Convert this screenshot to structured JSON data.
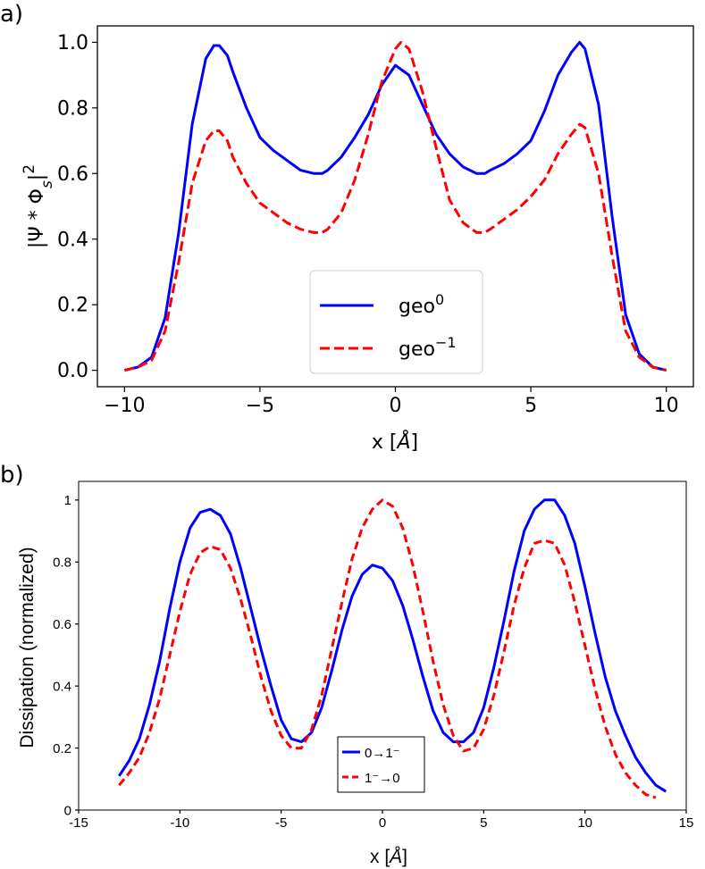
{
  "chart_data": [
    {
      "panel_label": "a)",
      "type": "line",
      "xlabel_main": "x [",
      "xlabel_unit": "Å",
      "xlabel_close": "]",
      "ylabel": {
        "lead": "|Ψ * Φ",
        "sub": "s",
        "trail": "|",
        "sup": "2"
      },
      "xlim": [
        -11.0,
        11.0
      ],
      "ylim": [
        -0.05,
        1.05
      ],
      "xticks": [
        -10,
        -5,
        0,
        5,
        10
      ],
      "xtick_labels": [
        "−10",
        "−5",
        "0",
        "5",
        "10"
      ],
      "yticks": [
        0.0,
        0.2,
        0.4,
        0.6,
        0.8,
        1.0
      ],
      "ytick_labels": [
        "0.0",
        "0.2",
        "0.4",
        "0.6",
        "0.8",
        "1.0"
      ],
      "legend": "lower-center",
      "series": [
        {
          "name": "geo",
          "sup": "0",
          "color": "#0000ff",
          "dash": "solid",
          "x": [
            -10.0,
            -9.5,
            -9.0,
            -8.5,
            -8.0,
            -7.5,
            -7.0,
            -6.7,
            -6.5,
            -6.2,
            -6.0,
            -5.5,
            -5.0,
            -4.5,
            -4.0,
            -3.5,
            -3.0,
            -2.7,
            -2.5,
            -2.0,
            -1.5,
            -1.0,
            -0.5,
            0.0,
            0.5,
            1.0,
            1.5,
            2.0,
            2.5,
            3.0,
            3.3,
            3.5,
            4.0,
            4.5,
            5.0,
            5.5,
            6.0,
            6.5,
            6.8,
            7.0,
            7.5,
            8.0,
            8.5,
            9.0,
            9.5,
            10.0
          ],
          "y": [
            0.0,
            0.01,
            0.04,
            0.16,
            0.42,
            0.75,
            0.95,
            0.99,
            0.99,
            0.96,
            0.91,
            0.8,
            0.71,
            0.67,
            0.64,
            0.61,
            0.6,
            0.6,
            0.61,
            0.65,
            0.71,
            0.78,
            0.87,
            0.93,
            0.9,
            0.81,
            0.72,
            0.66,
            0.62,
            0.6,
            0.6,
            0.61,
            0.63,
            0.66,
            0.7,
            0.79,
            0.9,
            0.97,
            1.0,
            0.98,
            0.81,
            0.47,
            0.17,
            0.05,
            0.01,
            0.0
          ]
        },
        {
          "name": "geo",
          "sup": "−1",
          "color": "#ff0000",
          "dash": "dashed",
          "x": [
            -10.0,
            -9.5,
            -9.0,
            -8.5,
            -8.0,
            -7.5,
            -7.0,
            -6.7,
            -6.5,
            -6.2,
            -6.0,
            -5.5,
            -5.0,
            -4.5,
            -4.0,
            -3.5,
            -3.0,
            -2.7,
            -2.5,
            -2.0,
            -1.5,
            -1.0,
            -0.5,
            0.0,
            0.2,
            0.5,
            1.0,
            1.5,
            2.0,
            2.5,
            3.0,
            3.3,
            3.5,
            4.0,
            4.5,
            5.0,
            5.5,
            6.0,
            6.5,
            6.8,
            7.0,
            7.5,
            8.0,
            8.5,
            9.0,
            9.5,
            10.0
          ],
          "y": [
            0.0,
            0.01,
            0.03,
            0.12,
            0.33,
            0.57,
            0.7,
            0.73,
            0.73,
            0.7,
            0.65,
            0.57,
            0.51,
            0.48,
            0.45,
            0.43,
            0.42,
            0.42,
            0.43,
            0.48,
            0.58,
            0.72,
            0.88,
            0.98,
            1.0,
            0.98,
            0.85,
            0.68,
            0.52,
            0.45,
            0.42,
            0.42,
            0.43,
            0.46,
            0.49,
            0.53,
            0.58,
            0.66,
            0.72,
            0.75,
            0.74,
            0.6,
            0.35,
            0.12,
            0.04,
            0.01,
            0.0
          ]
        }
      ]
    },
    {
      "panel_label": "b)",
      "type": "line",
      "xlabel_main": "x [",
      "xlabel_unit": "Å",
      "xlabel_close": "]",
      "ylabel": "Dissipation (normalized)",
      "xlim": [
        -15,
        15
      ],
      "ylim": [
        0,
        1.06
      ],
      "xticks": [
        -15,
        -10,
        -5,
        0,
        5,
        10,
        15
      ],
      "xtick_labels": [
        "-15",
        "-10",
        "-5",
        "0",
        "5",
        "10",
        "15"
      ],
      "yticks": [
        0,
        0.2,
        0.4,
        0.6,
        0.8,
        1
      ],
      "ytick_labels": [
        "0",
        "0.2",
        "0.4",
        "0.6",
        "0.8",
        "1"
      ],
      "legend": "bottom-center",
      "series": [
        {
          "name": "0→1⁻",
          "color": "#0000ff",
          "dash": "solid",
          "x": [
            -13.0,
            -12.5,
            -12.0,
            -11.5,
            -11.0,
            -10.5,
            -10.0,
            -9.5,
            -9.0,
            -8.5,
            -8.0,
            -7.5,
            -7.0,
            -6.5,
            -6.0,
            -5.5,
            -5.0,
            -4.5,
            -4.0,
            -3.5,
            -3.0,
            -2.5,
            -2.0,
            -1.5,
            -1.0,
            -0.5,
            0.0,
            0.5,
            1.0,
            1.5,
            2.0,
            2.5,
            3.0,
            3.5,
            4.0,
            4.5,
            5.0,
            5.5,
            6.0,
            6.5,
            7.0,
            7.5,
            8.0,
            8.5,
            9.0,
            9.5,
            10.0,
            10.5,
            11.0,
            11.5,
            12.0,
            12.5,
            13.0,
            13.5,
            14.0
          ],
          "y": [
            0.11,
            0.16,
            0.23,
            0.34,
            0.48,
            0.65,
            0.8,
            0.91,
            0.96,
            0.97,
            0.95,
            0.89,
            0.78,
            0.65,
            0.52,
            0.4,
            0.29,
            0.23,
            0.22,
            0.25,
            0.33,
            0.45,
            0.58,
            0.69,
            0.76,
            0.79,
            0.78,
            0.74,
            0.66,
            0.55,
            0.43,
            0.32,
            0.25,
            0.22,
            0.22,
            0.25,
            0.33,
            0.46,
            0.61,
            0.77,
            0.9,
            0.97,
            1.0,
            1.0,
            0.95,
            0.86,
            0.72,
            0.57,
            0.43,
            0.32,
            0.24,
            0.17,
            0.12,
            0.08,
            0.06
          ]
        },
        {
          "name": "1⁻→0",
          "color": "#ff0000",
          "dash": "dashed",
          "x": [
            -13.0,
            -12.5,
            -12.0,
            -11.5,
            -11.0,
            -10.5,
            -10.0,
            -9.5,
            -9.0,
            -8.5,
            -8.0,
            -7.5,
            -7.0,
            -6.5,
            -6.0,
            -5.5,
            -5.0,
            -4.5,
            -4.0,
            -3.5,
            -3.0,
            -2.5,
            -2.0,
            -1.5,
            -1.0,
            -0.5,
            0.0,
            0.5,
            1.0,
            1.5,
            2.0,
            2.5,
            3.0,
            3.5,
            4.0,
            4.5,
            5.0,
            5.5,
            6.0,
            6.5,
            7.0,
            7.5,
            8.0,
            8.5,
            9.0,
            9.5,
            10.0,
            10.5,
            11.0,
            11.5,
            12.0,
            12.5,
            13.0,
            13.5
          ],
          "y": [
            0.08,
            0.12,
            0.17,
            0.25,
            0.36,
            0.5,
            0.64,
            0.76,
            0.83,
            0.85,
            0.84,
            0.78,
            0.68,
            0.56,
            0.43,
            0.32,
            0.24,
            0.2,
            0.2,
            0.26,
            0.37,
            0.52,
            0.67,
            0.81,
            0.91,
            0.97,
            1.0,
            0.98,
            0.91,
            0.79,
            0.64,
            0.48,
            0.34,
            0.24,
            0.19,
            0.2,
            0.26,
            0.37,
            0.51,
            0.66,
            0.78,
            0.86,
            0.87,
            0.86,
            0.79,
            0.67,
            0.53,
            0.39,
            0.27,
            0.18,
            0.12,
            0.08,
            0.05,
            0.04
          ]
        }
      ]
    }
  ]
}
